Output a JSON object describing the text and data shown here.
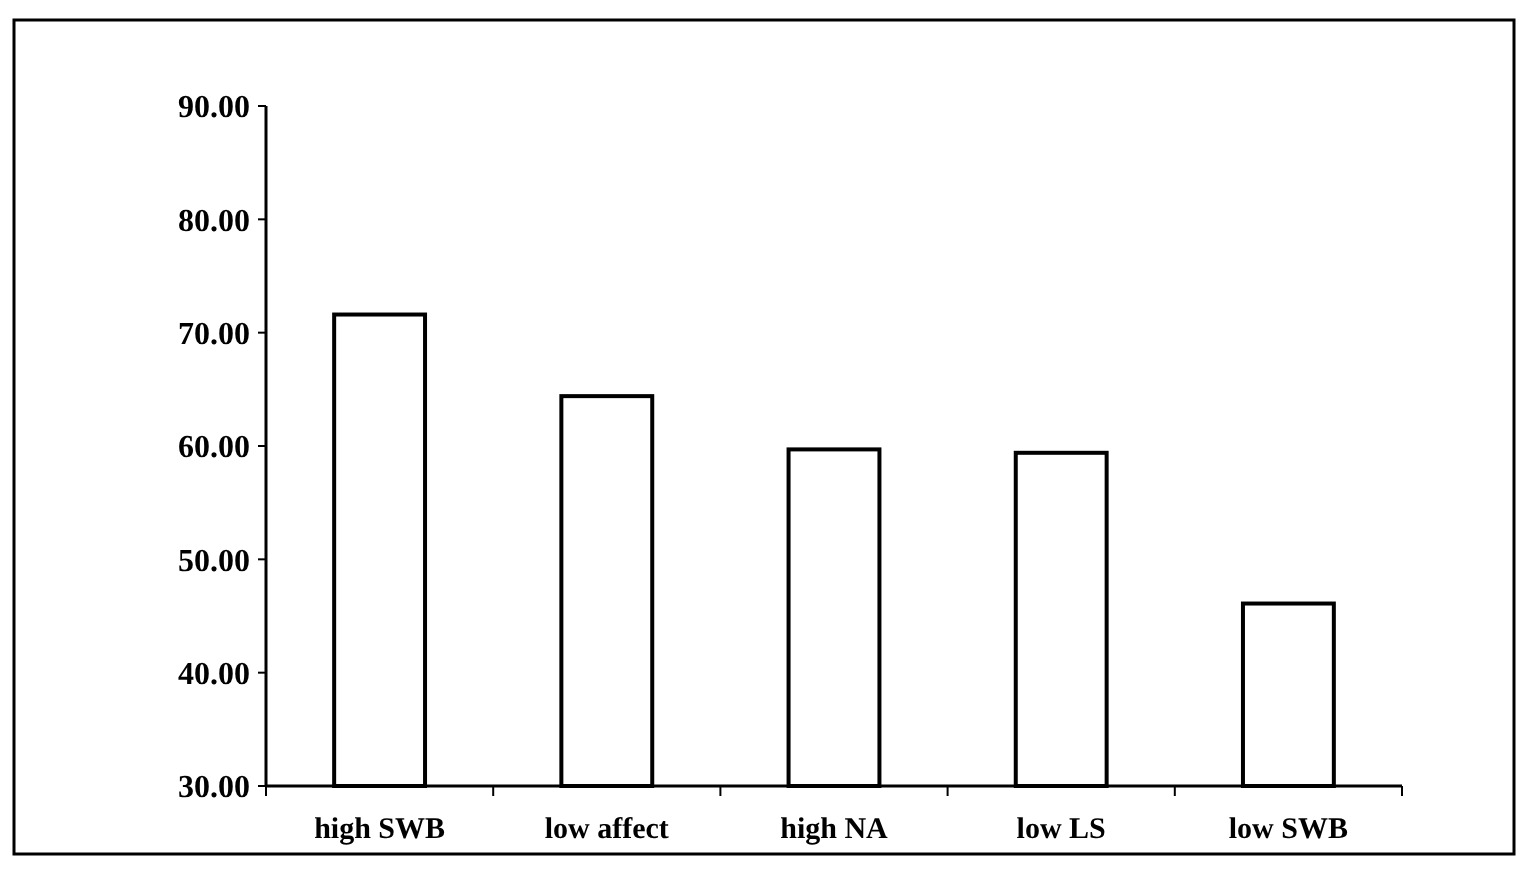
{
  "chart_data": {
    "type": "bar",
    "categories": [
      "high SWB",
      "low affect",
      "high NA",
      "low LS",
      "low SWB"
    ],
    "values": [
      71.6,
      64.4,
      59.7,
      59.4,
      46.1
    ],
    "color": "#ffffff",
    "ylim": [
      30,
      90
    ],
    "yticks": [
      {
        "value": 30,
        "label": "30.00"
      },
      {
        "value": 40,
        "label": "40.00"
      },
      {
        "value": 50,
        "label": "50.00"
      },
      {
        "value": 60,
        "label": "60.00"
      },
      {
        "value": 70,
        "label": "70.00"
      },
      {
        "value": 80,
        "label": "80.00"
      },
      {
        "value": 90,
        "label": "90.00"
      }
    ],
    "grid": false
  }
}
